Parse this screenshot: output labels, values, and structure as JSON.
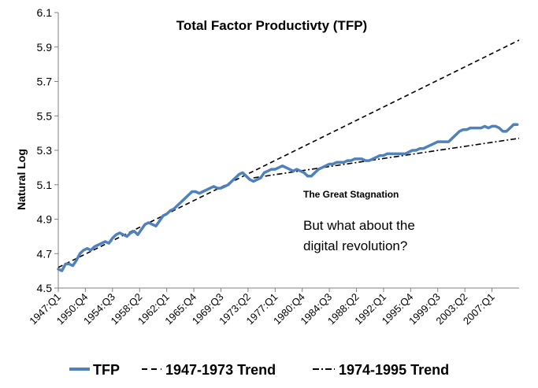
{
  "chart_data": {
    "type": "line",
    "title": "Total Factor Productivty (TFP)",
    "ylabel": "Natural Log",
    "xlabel": "",
    "ylim": [
      4.5,
      6.1
    ],
    "yticks": [
      "4.5",
      "4.7",
      "4.9",
      "5.1",
      "5.3",
      "5.5",
      "5.7",
      "5.9",
      "6.1"
    ],
    "ytick_values": [
      4.5,
      4.7,
      4.9,
      5.1,
      5.3,
      5.5,
      5.7,
      5.9,
      6.1
    ],
    "xlim": [
      1947.0,
      2010.75
    ],
    "xticks": [
      "1947:Q1",
      "1950:Q4",
      "1954:Q3",
      "1958:Q2",
      "1962:Q1",
      "1965:Q4",
      "1969:Q3",
      "1973:Q2",
      "1977:Q1",
      "1980:Q4",
      "1984:Q3",
      "1988:Q2",
      "1992:Q1",
      "1995:Q4",
      "1999:Q3",
      "2003:Q2",
      "2007:Q1"
    ],
    "xtick_values": [
      1947.0,
      1950.75,
      1954.5,
      1958.25,
      1962.0,
      1965.75,
      1969.5,
      1973.25,
      1977.0,
      1980.75,
      1984.5,
      1988.25,
      1992.0,
      1995.75,
      1999.5,
      2003.25,
      2007.0
    ],
    "grid": false,
    "legend_position": "bottom",
    "series": [
      {
        "name": "TFP",
        "style": "solid",
        "color": "#4f81bd",
        "x": [
          1947.0,
          1947.5,
          1948.0,
          1948.5,
          1949.0,
          1949.5,
          1950.0,
          1950.5,
          1951.0,
          1951.5,
          1952.0,
          1952.5,
          1953.0,
          1953.5,
          1954.0,
          1954.5,
          1955.0,
          1955.5,
          1956.0,
          1956.5,
          1957.0,
          1957.5,
          1958.0,
          1958.5,
          1959.0,
          1959.5,
          1960.0,
          1960.5,
          1961.0,
          1961.5,
          1962.0,
          1962.5,
          1963.0,
          1963.5,
          1964.0,
          1964.5,
          1965.0,
          1965.5,
          1966.0,
          1966.5,
          1967.0,
          1967.5,
          1968.0,
          1968.5,
          1969.0,
          1969.5,
          1970.0,
          1970.5,
          1971.0,
          1971.5,
          1972.0,
          1972.5,
          1973.0,
          1973.5,
          1974.0,
          1974.5,
          1975.0,
          1975.5,
          1976.0,
          1976.5,
          1977.0,
          1977.5,
          1978.0,
          1978.5,
          1979.0,
          1979.5,
          1980.0,
          1980.5,
          1981.0,
          1981.5,
          1982.0,
          1982.5,
          1983.0,
          1983.5,
          1984.0,
          1984.5,
          1985.0,
          1985.5,
          1986.0,
          1986.5,
          1987.0,
          1987.5,
          1988.0,
          1988.5,
          1989.0,
          1989.5,
          1990.0,
          1990.5,
          1991.0,
          1991.5,
          1992.0,
          1992.5,
          1993.0,
          1993.5,
          1994.0,
          1994.5,
          1995.0,
          1995.5,
          1996.0,
          1996.5,
          1997.0,
          1997.5,
          1998.0,
          1998.5,
          1999.0,
          1999.5,
          2000.0,
          2000.5,
          2001.0,
          2001.5,
          2002.0,
          2002.5,
          2003.0,
          2003.5,
          2004.0,
          2004.5,
          2005.0,
          2005.5,
          2006.0,
          2006.5,
          2007.0,
          2007.5,
          2008.0,
          2008.5,
          2009.0,
          2009.5,
          2010.0,
          2010.5
        ],
        "values": [
          4.61,
          4.6,
          4.64,
          4.64,
          4.63,
          4.66,
          4.7,
          4.72,
          4.73,
          4.72,
          4.74,
          4.75,
          4.76,
          4.77,
          4.76,
          4.79,
          4.81,
          4.82,
          4.81,
          4.8,
          4.82,
          4.83,
          4.81,
          4.84,
          4.87,
          4.88,
          4.87,
          4.86,
          4.89,
          4.92,
          4.93,
          4.95,
          4.96,
          4.98,
          5.0,
          5.02,
          5.04,
          5.06,
          5.06,
          5.05,
          5.06,
          5.07,
          5.08,
          5.09,
          5.08,
          5.08,
          5.09,
          5.1,
          5.12,
          5.14,
          5.16,
          5.17,
          5.15,
          5.13,
          5.12,
          5.13,
          5.14,
          5.17,
          5.18,
          5.19,
          5.19,
          5.2,
          5.21,
          5.2,
          5.19,
          5.18,
          5.19,
          5.18,
          5.17,
          5.15,
          5.15,
          5.17,
          5.19,
          5.2,
          5.21,
          5.22,
          5.22,
          5.23,
          5.23,
          5.23,
          5.24,
          5.24,
          5.25,
          5.25,
          5.25,
          5.24,
          5.24,
          5.25,
          5.26,
          5.27,
          5.27,
          5.28,
          5.28,
          5.28,
          5.28,
          5.28,
          5.28,
          5.29,
          5.3,
          5.3,
          5.31,
          5.31,
          5.32,
          5.33,
          5.34,
          5.35,
          5.35,
          5.35,
          5.35,
          5.37,
          5.39,
          5.41,
          5.42,
          5.42,
          5.43,
          5.43,
          5.43,
          5.43,
          5.44,
          5.43,
          5.44,
          5.44,
          5.43,
          5.41,
          5.41,
          5.43,
          5.45,
          5.45
        ]
      },
      {
        "name": "1947-1973 Trend",
        "style": "dashed",
        "color": "#000000",
        "x": [
          1947.0,
          2010.75
        ],
        "values": [
          4.62,
          5.94
        ]
      },
      {
        "name": "1974-1995 Trend",
        "style": "dashdot",
        "color": "#000000",
        "x": [
          1974.0,
          2010.75
        ],
        "values": [
          5.14,
          5.37
        ]
      }
    ],
    "annotations": [
      "The Great Stagnation",
      "But what about the",
      "digital revolution?"
    ]
  }
}
